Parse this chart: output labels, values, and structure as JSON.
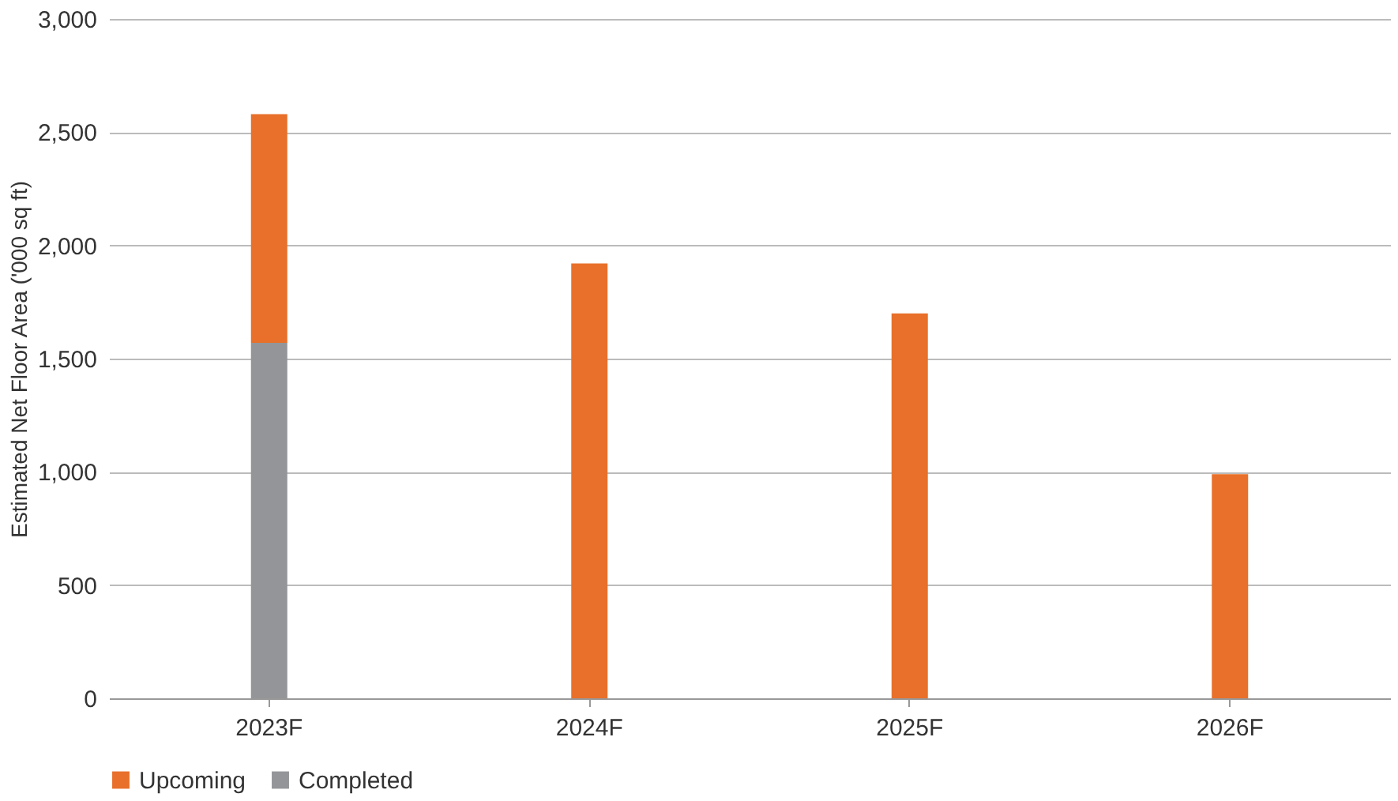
{
  "chart_data": {
    "type": "bar",
    "stacked": true,
    "ylabel": "Estimated Net Floor Area ('000 sq ft)",
    "categories": [
      "2023F",
      "2024F",
      "2025F",
      "2026F"
    ],
    "series": [
      {
        "name": "Completed",
        "color": "#939598",
        "values": [
          1570,
          null,
          null,
          null
        ]
      },
      {
        "name": "Upcoming",
        "color": "#e8702a",
        "values": [
          1010,
          1920,
          1700,
          990
        ]
      }
    ],
    "ylim": [
      0,
      3000
    ],
    "yticks": [
      0,
      500,
      {
        "value": 1000,
        "label": "1,000"
      },
      {
        "value": 1500,
        "label": "1,500"
      },
      {
        "value": 2000,
        "label": "2,000"
      },
      {
        "value": 2500,
        "label": "2,500"
      },
      {
        "value": 3000,
        "label": "3,000"
      }
    ],
    "grid": "y",
    "legend": "bottom"
  }
}
